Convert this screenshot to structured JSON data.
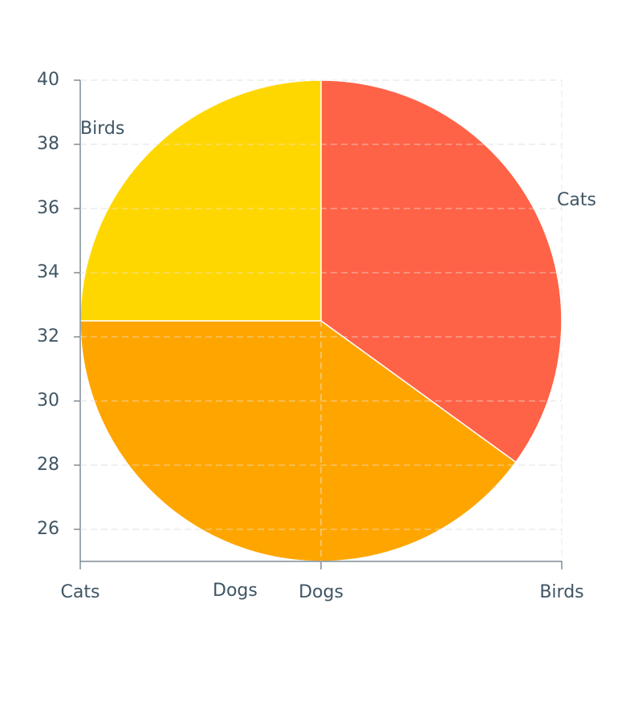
{
  "chart_data": {
    "type": "pie",
    "title": "",
    "xlabel": "",
    "ylabel": "",
    "slices": [
      {
        "label": "Cats",
        "value": 35,
        "color": "#FF6347"
      },
      {
        "label": "Dogs",
        "value": 40,
        "color": "#FFA500"
      },
      {
        "label": "Birds",
        "value": 25,
        "color": "#FFD700"
      }
    ],
    "axis": {
      "ylim": [
        25,
        40
      ],
      "y_ticks": [
        26,
        28,
        30,
        32,
        34,
        36,
        38,
        40
      ],
      "x_ticks": [
        "Cats",
        "Dogs",
        "Birds"
      ],
      "x_tick_values": [
        0,
        1,
        2
      ],
      "xlim": [
        0,
        2
      ]
    },
    "grid": true,
    "text_color": "#3f5564",
    "axis_color": "#7f8c96"
  }
}
